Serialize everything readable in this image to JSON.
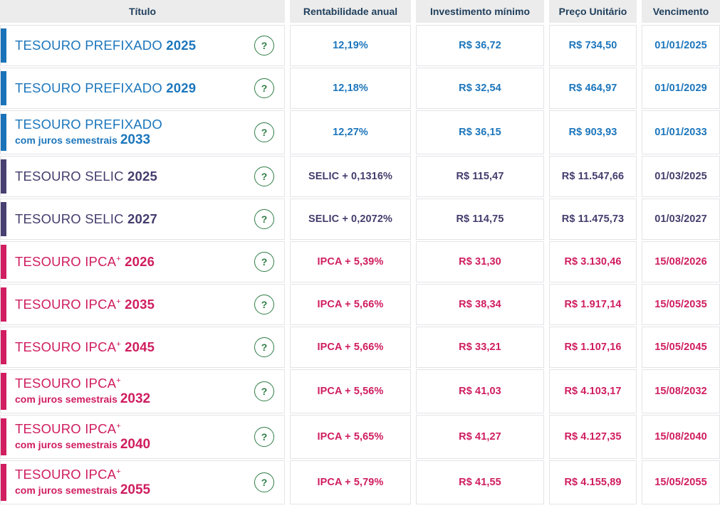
{
  "table": {
    "columns": {
      "title": "Título",
      "rate": "Rentabilidade anual",
      "min_investment": "Investimento mínimo",
      "unit_price": "Preço Unitário",
      "maturity": "Vencimento"
    },
    "rows": [
      {
        "type": "prefixado",
        "name": "TESOURO PREFIXADO",
        "plus": false,
        "qualifier": "",
        "year": "2025",
        "rate": "12,19%",
        "min_investment": "R$ 36,72",
        "unit_price": "R$ 734,50",
        "maturity": "01/01/2025"
      },
      {
        "type": "prefixado",
        "name": "TESOURO PREFIXADO",
        "plus": false,
        "qualifier": "",
        "year": "2029",
        "rate": "12,18%",
        "min_investment": "R$ 32,54",
        "unit_price": "R$ 464,97",
        "maturity": "01/01/2029"
      },
      {
        "type": "prefixado",
        "name": "TESOURO PREFIXADO",
        "plus": false,
        "qualifier": "com juros semestrais",
        "year": "2033",
        "rate": "12,27%",
        "min_investment": "R$ 36,15",
        "unit_price": "R$ 903,93",
        "maturity": "01/01/2033"
      },
      {
        "type": "selic",
        "name": "TESOURO SELIC",
        "plus": false,
        "qualifier": "",
        "year": "2025",
        "rate": "SELIC + 0,1316%",
        "min_investment": "R$ 115,47",
        "unit_price": "R$ 11.547,66",
        "maturity": "01/03/2025"
      },
      {
        "type": "selic",
        "name": "TESOURO SELIC",
        "plus": false,
        "qualifier": "",
        "year": "2027",
        "rate": "SELIC + 0,2072%",
        "min_investment": "R$ 114,75",
        "unit_price": "R$ 11.475,73",
        "maturity": "01/03/2027"
      },
      {
        "type": "ipca",
        "name": "TESOURO IPCA",
        "plus": true,
        "qualifier": "",
        "year": "2026",
        "rate": "IPCA + 5,39%",
        "min_investment": "R$ 31,30",
        "unit_price": "R$ 3.130,46",
        "maturity": "15/08/2026"
      },
      {
        "type": "ipca",
        "name": "TESOURO IPCA",
        "plus": true,
        "qualifier": "",
        "year": "2035",
        "rate": "IPCA + 5,66%",
        "min_investment": "R$ 38,34",
        "unit_price": "R$ 1.917,14",
        "maturity": "15/05/2035"
      },
      {
        "type": "ipca",
        "name": "TESOURO IPCA",
        "plus": true,
        "qualifier": "",
        "year": "2045",
        "rate": "IPCA + 5,66%",
        "min_investment": "R$ 33,21",
        "unit_price": "R$ 1.107,16",
        "maturity": "15/05/2045"
      },
      {
        "type": "ipca",
        "name": "TESOURO IPCA",
        "plus": true,
        "qualifier": "com juros semestrais",
        "year": "2032",
        "rate": "IPCA + 5,56%",
        "min_investment": "R$ 41,03",
        "unit_price": "R$ 4.103,17",
        "maturity": "15/08/2032"
      },
      {
        "type": "ipca",
        "name": "TESOURO IPCA",
        "plus": true,
        "qualifier": "com juros semestrais",
        "year": "2040",
        "rate": "IPCA + 5,65%",
        "min_investment": "R$ 41,27",
        "unit_price": "R$ 4.127,35",
        "maturity": "15/08/2040"
      },
      {
        "type": "ipca",
        "name": "TESOURO IPCA",
        "plus": true,
        "qualifier": "com juros semestrais",
        "year": "2055",
        "rate": "IPCA + 5,79%",
        "min_investment": "R$ 41,55",
        "unit_price": "R$ 4.155,89",
        "maturity": "15/05/2055"
      }
    ]
  },
  "icons": {
    "help": "?",
    "plus_superscript": "+"
  },
  "colors": {
    "prefixado": "#1c76bc",
    "selic": "#443d6d",
    "ipca": "#cf1d5f",
    "help_green": "#2e7d46",
    "header_bg": "#ececec",
    "header_text": "#21405d",
    "cell_border": "#e4e4e8"
  }
}
